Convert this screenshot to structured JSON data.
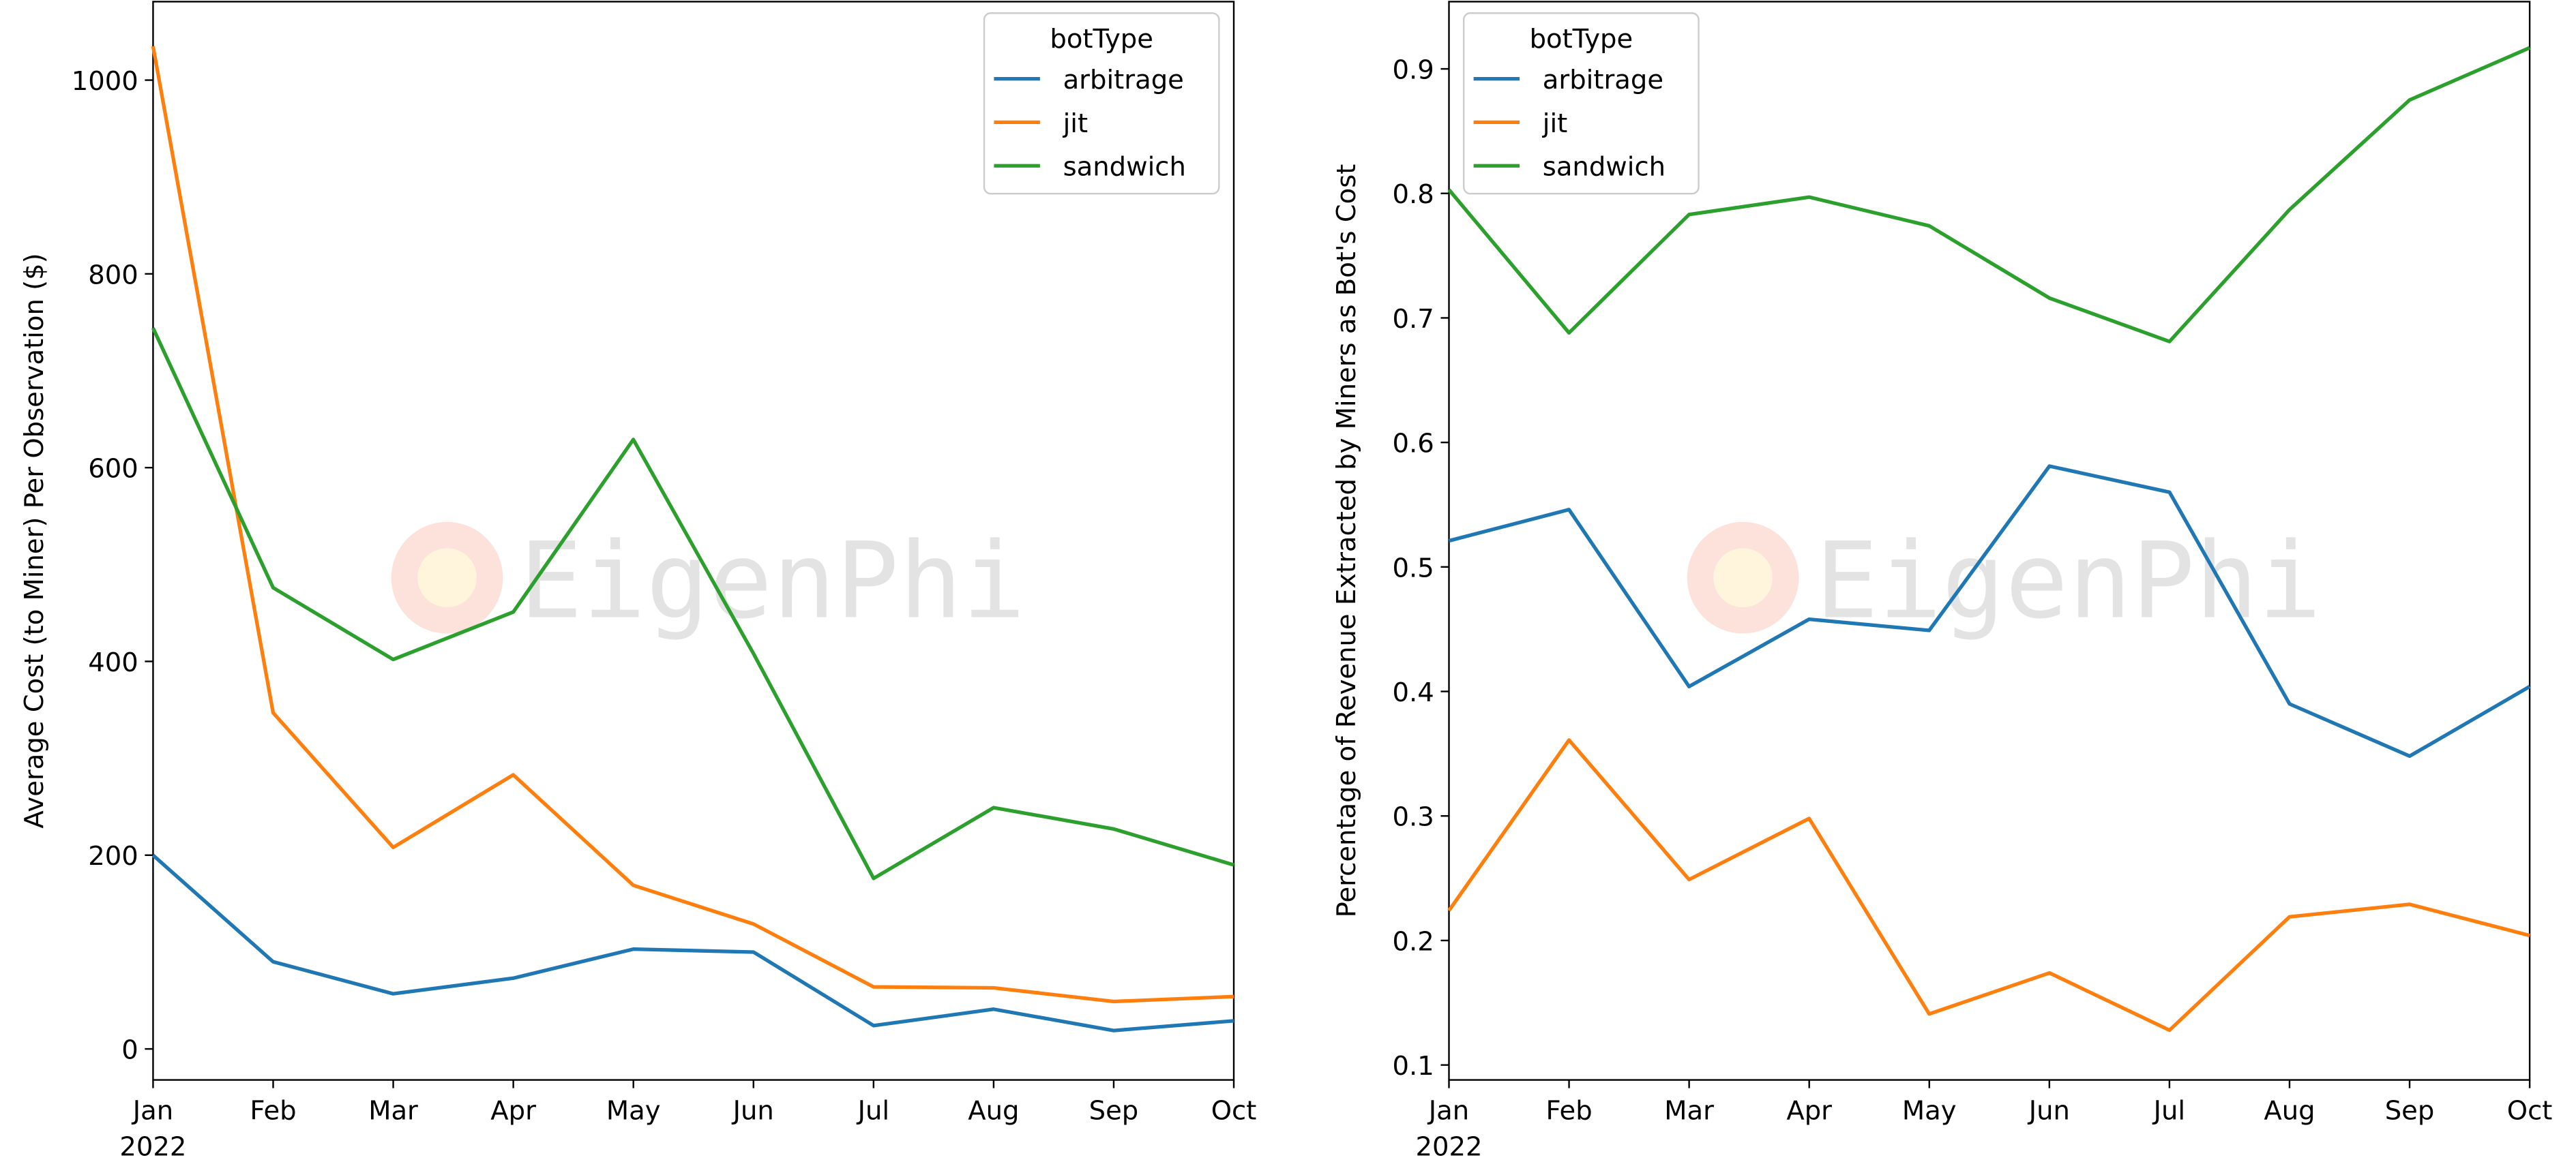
{
  "watermark": "EigenPhi",
  "chart_data": [
    {
      "type": "line",
      "title": "",
      "xlabel": "",
      "x_year_label": "2022",
      "ylabel": "Average Cost (to Miner) Per Observation ($)",
      "categories": [
        "Jan",
        "Feb",
        "Mar",
        "Apr",
        "May",
        "Jun",
        "Jul",
        "Aug",
        "Sep",
        "Oct"
      ],
      "ylim": [
        -32,
        1081
      ],
      "yticks": [
        0,
        200,
        400,
        600,
        800,
        1000
      ],
      "legend": {
        "title": "botType",
        "placement": "top-right"
      },
      "series": [
        {
          "name": "arbitrage",
          "color": "#1f77b4",
          "values": [
            200,
            90,
            57,
            73,
            103,
            100,
            24,
            41,
            19,
            29
          ]
        },
        {
          "name": "jit",
          "color": "#ff7f0e",
          "values": [
            1035,
            347,
            208,
            283,
            169,
            129,
            64,
            63,
            49,
            54
          ]
        },
        {
          "name": "sandwich",
          "color": "#2ca02c",
          "values": [
            744,
            476,
            402,
            451,
            629,
            408,
            176,
            249,
            227,
            190
          ]
        }
      ]
    },
    {
      "type": "line",
      "title": "",
      "xlabel": "",
      "x_year_label": "2022",
      "ylabel": "Percentage of Revenue Extracted by Miners as Bot's Cost",
      "categories": [
        "Jan",
        "Feb",
        "Mar",
        "Apr",
        "May",
        "Jun",
        "Jul",
        "Aug",
        "Sep",
        "Oct"
      ],
      "ylim": [
        0.088,
        0.954
      ],
      "yticks": [
        "0.1",
        "0.2",
        "0.3",
        "0.4",
        "0.5",
        "0.6",
        "0.7",
        "0.8",
        "0.9"
      ],
      "legend": {
        "title": "botType",
        "placement": "top-left"
      },
      "series": [
        {
          "name": "arbitrage",
          "color": "#1f77b4",
          "values": [
            0.521,
            0.546,
            0.404,
            0.458,
            0.449,
            0.581,
            0.56,
            0.39,
            0.348,
            0.404
          ]
        },
        {
          "name": "jit",
          "color": "#ff7f0e",
          "values": [
            0.224,
            0.361,
            0.249,
            0.298,
            0.141,
            0.174,
            0.128,
            0.219,
            0.229,
            0.204
          ]
        },
        {
          "name": "sandwich",
          "color": "#2ca02c",
          "values": [
            0.803,
            0.688,
            0.783,
            0.797,
            0.774,
            0.716,
            0.681,
            0.787,
            0.875,
            0.917
          ]
        }
      ]
    }
  ]
}
